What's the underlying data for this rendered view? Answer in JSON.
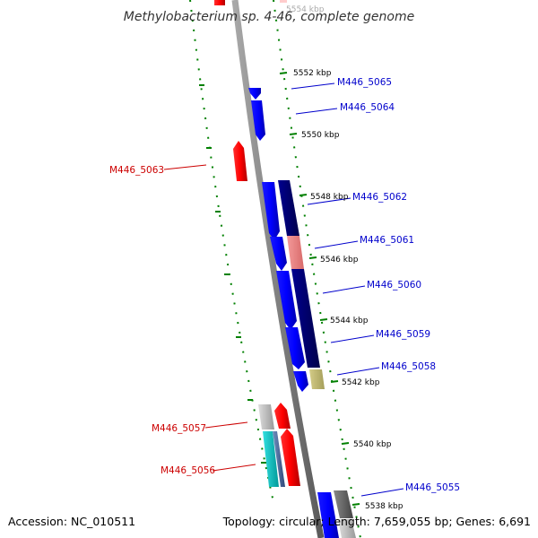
{
  "title": "Methylobacterium sp. 4-46, complete genome",
  "accession": "Accession: NC_010511",
  "summary": "Topology: circular; Length: 7,659,055 bp; Genes: 6,691",
  "ticks": [
    {
      "label": "5554 kbp"
    },
    {
      "label": "5552 kbp"
    },
    {
      "label": "5550 kbp"
    },
    {
      "label": "5548 kbp"
    },
    {
      "label": "5546 kbp"
    },
    {
      "label": "5544 kbp"
    },
    {
      "label": "5542 kbp"
    },
    {
      "label": "5540 kbp"
    },
    {
      "label": "5538 kbp"
    }
  ],
  "genes": [
    {
      "label": "M446_5065",
      "strand": "plus",
      "color": "#0000cc"
    },
    {
      "label": "M446_5064",
      "strand": "plus",
      "color": "#0000cc"
    },
    {
      "label": "M446_5063",
      "strand": "minus",
      "color": "#cc0000"
    },
    {
      "label": "M446_5062",
      "strand": "plus",
      "color": "#0000cc"
    },
    {
      "label": "M446_5061",
      "strand": "plus",
      "color": "#0000cc"
    },
    {
      "label": "M446_5060",
      "strand": "plus",
      "color": "#0000cc"
    },
    {
      "label": "M446_5059",
      "strand": "plus",
      "color": "#0000cc"
    },
    {
      "label": "M446_5058",
      "strand": "plus",
      "color": "#0000cc"
    },
    {
      "label": "M446_5057",
      "strand": "minus",
      "color": "#cc0000"
    },
    {
      "label": "M446_5056",
      "strand": "minus",
      "color": "#cc0000"
    },
    {
      "label": "M446_5055",
      "strand": "plus",
      "color": "#0000cc"
    }
  ],
  "colors": {
    "backbone": "#808080",
    "tick_green": "#008000",
    "cds_plus": "#0000ff",
    "cds_minus": "#ff0000",
    "cog_dark": "#000080",
    "cog_pink": "#f08080",
    "cog_khaki": "#bdb76b",
    "cog_cyan": "#00cccc",
    "cog_gray": "#bbbbbb",
    "cog_darkgray": "#666666"
  }
}
